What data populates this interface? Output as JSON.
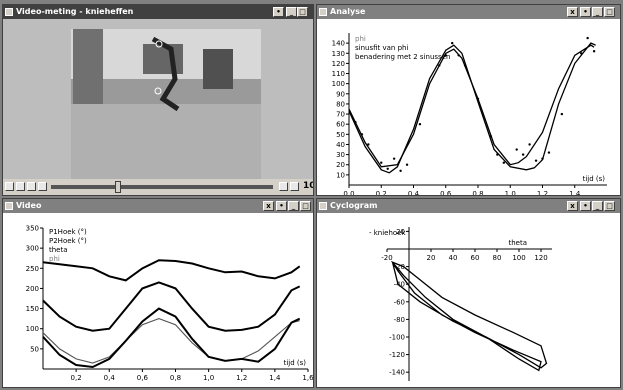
{
  "windows": {
    "video_meting": {
      "title": "Video-meting - knieheffen",
      "frame_number": "10"
    },
    "analyse": {
      "title": "Analyse",
      "legend": [
        "phi",
        "sinusfit van phi",
        "benadering met 2 sinussen"
      ],
      "xlabel": "tijd (s)"
    },
    "video": {
      "title": "Video",
      "legend": [
        "P1Hoek (°)",
        "P2Hoek (°)",
        "theta",
        "phi"
      ],
      "xlabel": "tijd (s)"
    },
    "cyclogram": {
      "title": "Cyclogram",
      "ylabel": "- kniehoek",
      "xlabel": "theta"
    }
  },
  "colors": {
    "title_active": "#404040",
    "title_inactive": "#808080",
    "window_bg": "#ffffff"
  },
  "chart_data": [
    {
      "type": "line",
      "title": "",
      "xlabel": "tijd (s)",
      "xlim": [
        0,
        1.6
      ],
      "ylim": [
        0,
        150
      ],
      "xticks": [
        "0,0",
        "0,2",
        "0,4",
        "0,6",
        "0,8",
        "1,0",
        "1,2",
        "1,4"
      ],
      "yticks": [
        "10",
        "20",
        "30",
        "40",
        "50",
        "60",
        "70",
        "80",
        "90",
        "100",
        "110",
        "120",
        "130",
        "140"
      ],
      "series": [
        {
          "name": "phi",
          "x": [
            0.04,
            0.08,
            0.12,
            0.2,
            0.24,
            0.28,
            0.32,
            0.36,
            0.44,
            0.56,
            0.6,
            0.64,
            0.68,
            0.72,
            0.8,
            0.88,
            0.92,
            0.96,
            1.04,
            1.08,
            1.12,
            1.16,
            1.2,
            1.24,
            1.32,
            1.44,
            1.48,
            1.52
          ],
          "y": [
            62,
            50,
            40,
            22,
            16,
            26,
            14,
            20,
            60,
            118,
            128,
            140,
            128,
            118,
            85,
            48,
            30,
            22,
            35,
            30,
            40,
            24,
            26,
            32,
            70,
            130,
            145,
            132
          ]
        },
        {
          "name": "sinusfit van phi",
          "x": [
            0,
            0.1,
            0.2,
            0.3,
            0.4,
            0.5,
            0.6,
            0.65,
            0.7,
            0.8,
            0.9,
            1.0,
            1.05,
            1.1,
            1.2,
            1.3,
            1.4,
            1.5,
            1.52
          ],
          "y": [
            75,
            42,
            18,
            20,
            50,
            100,
            130,
            134,
            125,
            85,
            40,
            20,
            22,
            28,
            52,
            95,
            128,
            138,
            136
          ]
        },
        {
          "name": "benadering met 2 sinussen",
          "x": [
            0,
            0.1,
            0.2,
            0.25,
            0.3,
            0.4,
            0.5,
            0.6,
            0.65,
            0.7,
            0.8,
            0.9,
            1.0,
            1.1,
            1.15,
            1.2,
            1.3,
            1.4,
            1.5,
            1.53
          ],
          "y": [
            73,
            38,
            15,
            12,
            18,
            55,
            105,
            133,
            138,
            130,
            82,
            35,
            18,
            15,
            17,
            25,
            80,
            120,
            140,
            138
          ]
        }
      ]
    },
    {
      "type": "line",
      "title": "",
      "xlabel": "tijd (s)",
      "xlim": [
        0,
        1.6
      ],
      "ylim": [
        0,
        350
      ],
      "xticks": [
        "0,2",
        "0,4",
        "0,6",
        "0,8",
        "1,0",
        "1,2",
        "1,4",
        "1,6"
      ],
      "yticks": [
        "50",
        "100",
        "150",
        "200",
        "250",
        "300",
        "350"
      ],
      "series": [
        {
          "name": "P1Hoek (°)",
          "x": [
            0,
            0.1,
            0.2,
            0.3,
            0.4,
            0.5,
            0.6,
            0.7,
            0.8,
            0.9,
            1.0,
            1.1,
            1.2,
            1.3,
            1.4,
            1.5,
            1.55
          ],
          "y": [
            265,
            260,
            255,
            250,
            230,
            220,
            250,
            270,
            268,
            262,
            250,
            240,
            242,
            230,
            225,
            240,
            255
          ]
        },
        {
          "name": "P2Hoek (°)",
          "x": [
            0,
            0.1,
            0.2,
            0.3,
            0.4,
            0.5,
            0.6,
            0.7,
            0.8,
            0.9,
            1.0,
            1.1,
            1.2,
            1.3,
            1.4,
            1.5,
            1.55
          ],
          "y": [
            170,
            130,
            105,
            95,
            100,
            150,
            200,
            215,
            200,
            150,
            105,
            95,
            97,
            105,
            135,
            195,
            205
          ]
        },
        {
          "name": "theta",
          "x": [
            0,
            0.1,
            0.2,
            0.3,
            0.4,
            0.5,
            0.6,
            0.7,
            0.8,
            0.9,
            1.0,
            1.1,
            1.2,
            1.3,
            1.4,
            1.5,
            1.55
          ],
          "y": [
            90,
            50,
            25,
            15,
            30,
            70,
            110,
            125,
            110,
            65,
            30,
            20,
            25,
            45,
            80,
            115,
            120
          ]
        },
        {
          "name": "phi",
          "x": [
            0,
            0.1,
            0.2,
            0.3,
            0.4,
            0.5,
            0.6,
            0.7,
            0.8,
            0.9,
            1.0,
            1.1,
            1.2,
            1.3,
            1.4,
            1.5,
            1.55
          ],
          "y": [
            80,
            35,
            10,
            5,
            25,
            70,
            118,
            150,
            130,
            75,
            30,
            20,
            25,
            18,
            50,
            115,
            125
          ]
        }
      ]
    },
    {
      "type": "line",
      "title": "",
      "xlabel": "theta",
      "ylabel": "- kniehoek",
      "xlim": [
        -20,
        130
      ],
      "ylim": [
        -150,
        25
      ],
      "xticks": [
        "-20",
        "20",
        "40",
        "60",
        "80",
        "100",
        "120"
      ],
      "yticks": [
        "20",
        "-20",
        "-40",
        "-60",
        "-80",
        "-100",
        "-120",
        "-140"
      ],
      "series": [
        {
          "name": "cyclogram",
          "x": [
            -15,
            -10,
            10,
            40,
            70,
            100,
            120,
            125,
            120,
            95,
            60,
            30,
            10,
            -5,
            -15,
            -10,
            5,
            30,
            60,
            95,
            120,
            118,
            100,
            70,
            40,
            15,
            -5,
            -15
          ],
          "y": [
            -15,
            -40,
            -60,
            -82,
            -100,
            -120,
            -135,
            -130,
            -110,
            -95,
            -75,
            -55,
            -35,
            -20,
            -15,
            -25,
            -50,
            -75,
            -95,
            -115,
            -128,
            -138,
            -125,
            -100,
            -80,
            -55,
            -30,
            -15
          ]
        }
      ]
    }
  ]
}
